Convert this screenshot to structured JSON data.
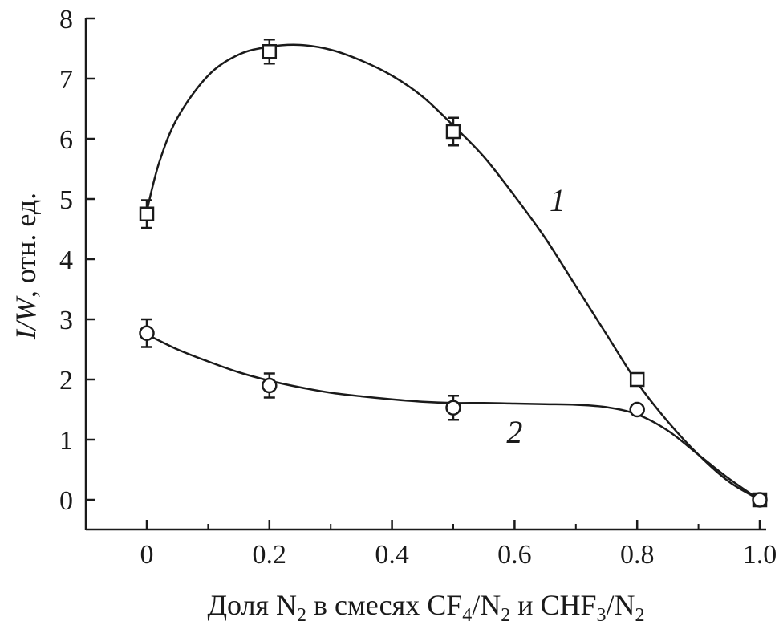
{
  "chart_data": {
    "type": "line",
    "xlabel": {
      "parts": [
        "Доля N",
        "2",
        " в смесях CF",
        "4",
        "/N",
        "2",
        " и CHF",
        "3",
        "/N",
        "2"
      ]
    },
    "ylabel": {
      "italic": "I/W",
      "rest": ", отн. ед."
    },
    "xlim": [
      -0.1,
      1.0
    ],
    "ylim": [
      0,
      8
    ],
    "x_ticks": [
      {
        "value": 0,
        "label": "0"
      },
      {
        "value": 0.2,
        "label": "0.2"
      },
      {
        "value": 0.4,
        "label": "0.4"
      },
      {
        "value": 0.6,
        "label": "0.6"
      },
      {
        "value": 0.8,
        "label": "0.8"
      },
      {
        "value": 1.0,
        "label": "1.0"
      }
    ],
    "y_ticks": [
      {
        "value": 0,
        "label": "0"
      },
      {
        "value": 1,
        "label": "1"
      },
      {
        "value": 2,
        "label": "2"
      },
      {
        "value": 3,
        "label": "3"
      },
      {
        "value": 4,
        "label": "4"
      },
      {
        "value": 5,
        "label": "5"
      },
      {
        "value": 6,
        "label": "6"
      },
      {
        "value": 7,
        "label": "7"
      },
      {
        "value": 8,
        "label": "8"
      }
    ],
    "grid": false,
    "series": [
      {
        "name": "1",
        "marker": "square",
        "label_at": [
          0.67,
          4.8
        ],
        "points": [
          {
            "x": 0,
            "y": 4.75,
            "err": 0.23
          },
          {
            "x": 0.2,
            "y": 7.45,
            "err": 0.2
          },
          {
            "x": 0.5,
            "y": 6.12,
            "err": 0.23
          },
          {
            "x": 0.8,
            "y": 2.0,
            "err": 0
          },
          {
            "x": 1.0,
            "y": 0.0,
            "err": 0
          }
        ],
        "curve": [
          [
            0,
            4.8
          ],
          [
            0.02,
            5.6
          ],
          [
            0.05,
            6.35
          ],
          [
            0.1,
            7.05
          ],
          [
            0.15,
            7.4
          ],
          [
            0.2,
            7.53
          ],
          [
            0.25,
            7.56
          ],
          [
            0.3,
            7.48
          ],
          [
            0.35,
            7.3
          ],
          [
            0.4,
            7.05
          ],
          [
            0.45,
            6.7
          ],
          [
            0.5,
            6.22
          ],
          [
            0.55,
            5.7
          ],
          [
            0.6,
            5.05
          ],
          [
            0.65,
            4.35
          ],
          [
            0.7,
            3.55
          ],
          [
            0.75,
            2.75
          ],
          [
            0.8,
            1.95
          ],
          [
            0.85,
            1.3
          ],
          [
            0.9,
            0.75
          ],
          [
            0.95,
            0.3
          ],
          [
            1.0,
            0.0
          ]
        ]
      },
      {
        "name": "2",
        "marker": "circle",
        "label_at": [
          0.6,
          0.95
        ],
        "points": [
          {
            "x": 0,
            "y": 2.77,
            "err": 0.23
          },
          {
            "x": 0.2,
            "y": 1.9,
            "err": 0.2
          },
          {
            "x": 0.5,
            "y": 1.53,
            "err": 0.2
          },
          {
            "x": 0.8,
            "y": 1.5,
            "err": 0
          },
          {
            "x": 1.0,
            "y": 0.0,
            "err": 0
          }
        ],
        "curve": [
          [
            0,
            2.75
          ],
          [
            0.05,
            2.5
          ],
          [
            0.1,
            2.3
          ],
          [
            0.15,
            2.12
          ],
          [
            0.2,
            1.98
          ],
          [
            0.25,
            1.87
          ],
          [
            0.3,
            1.78
          ],
          [
            0.35,
            1.72
          ],
          [
            0.4,
            1.67
          ],
          [
            0.45,
            1.63
          ],
          [
            0.5,
            1.61
          ],
          [
            0.55,
            1.61
          ],
          [
            0.6,
            1.6
          ],
          [
            0.65,
            1.59
          ],
          [
            0.7,
            1.58
          ],
          [
            0.75,
            1.54
          ],
          [
            0.8,
            1.42
          ],
          [
            0.85,
            1.15
          ],
          [
            0.9,
            0.75
          ],
          [
            0.95,
            0.35
          ],
          [
            1.0,
            0.0
          ]
        ]
      }
    ]
  }
}
